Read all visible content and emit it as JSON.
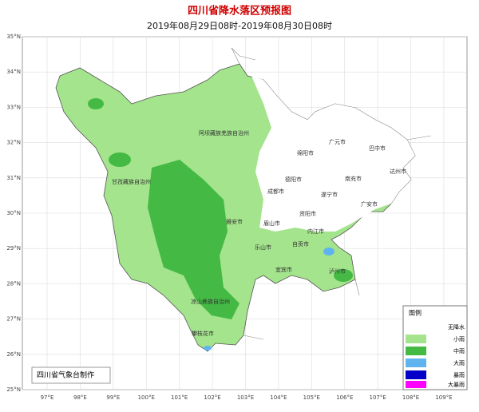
{
  "header": {
    "title": "四川省降水落区预报图",
    "subtitle": "2019年08月29日08时-2019年08月30日08时"
  },
  "axes": {
    "lat_labels": [
      "35°N",
      "34°N",
      "33°N",
      "32°N",
      "31°N",
      "30°N",
      "29°N",
      "28°N",
      "27°N",
      "26°N",
      "25°N"
    ],
    "lon_labels": [
      "97°E",
      "98°E",
      "99°E",
      "100°E",
      "101°E",
      "102°E",
      "103°E",
      "104°E",
      "105°E",
      "106°E",
      "107°E",
      "108°E",
      "109°E"
    ]
  },
  "places": [
    "阿坝藏族羌族自治州",
    "甘孜藏族自治州",
    "广元市",
    "巴中市",
    "绵阳市",
    "德阳市",
    "南充市",
    "达州市",
    "成都市",
    "遂宁市",
    "广安市",
    "雅安市",
    "眉山市",
    "资阳市",
    "内江市",
    "乐山市",
    "自贡市",
    "宜宾市",
    "泸州市",
    "凉山彝族自治州",
    "攀枝花市"
  ],
  "legend": {
    "title": "图例",
    "items": [
      "无降水",
      "小雨",
      "中雨",
      "大雨",
      "暴雨",
      "大暴雨"
    ]
  },
  "credit": "四川省气象台制作"
}
